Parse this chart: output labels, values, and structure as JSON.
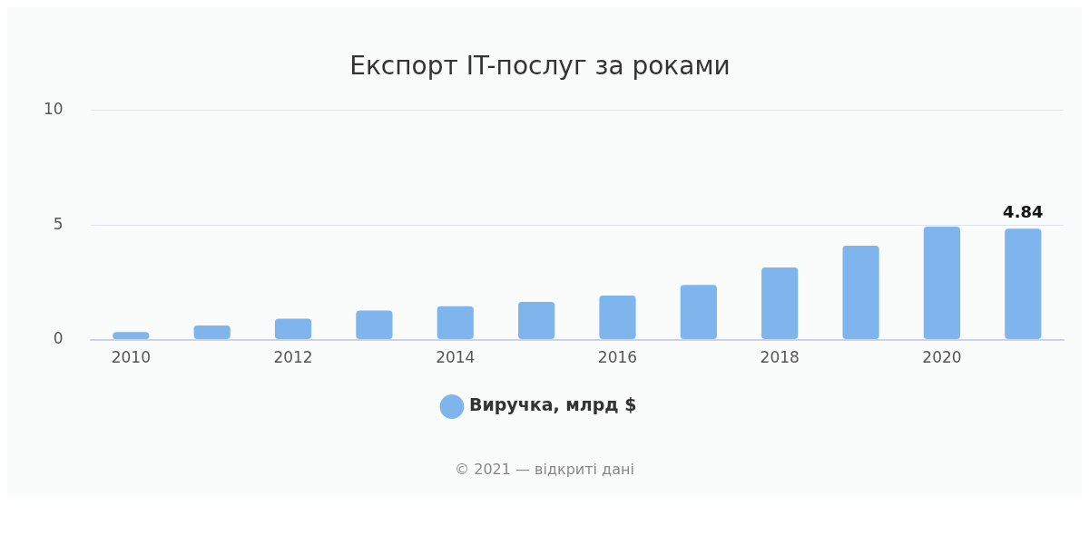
{
  "chart_data": {
    "type": "bar",
    "title": "Експорт IT-послуг за роками",
    "categories": [
      "2010",
      null,
      "2012",
      null,
      "2014",
      null,
      "2016",
      null,
      "2018",
      null,
      "2020",
      null
    ],
    "series": [
      {
        "name": "Виручка, млрд $",
        "color": "#7eb5ec",
        "values": [
          0.33,
          0.62,
          0.91,
          1.27,
          1.46,
          1.64,
          1.92,
          2.39,
          3.15,
          4.09,
          4.92,
          4.84
        ],
        "value_labels": [
          null,
          null,
          null,
          null,
          null,
          null,
          null,
          null,
          null,
          null,
          null,
          "4.84"
        ]
      }
    ],
    "ylim": [
      0,
      10
    ],
    "yticks": [
      0,
      5,
      10
    ],
    "grid": "y",
    "legend": "bottom",
    "annotations": [
      "© 2021 — відкриті дані"
    ]
  }
}
